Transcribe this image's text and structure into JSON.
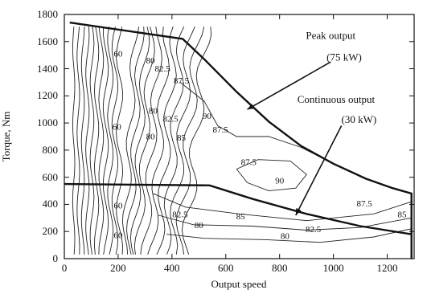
{
  "chart_data": {
    "type": "contour",
    "xlabel": "Output speed",
    "ylabel": "Torque, Nm",
    "xlim": [
      0,
      1300
    ],
    "ylim": [
      0,
      1800
    ],
    "x_ticks": [
      "0",
      "200",
      "400",
      "600",
      "800",
      "1000",
      "1200"
    ],
    "y_ticks": [
      "0",
      "200",
      "400",
      "600",
      "800",
      "1000",
      "1200",
      "1400",
      "1600",
      "1800"
    ],
    "grid": false,
    "peak_curve": {
      "points": [
        [
          20,
          1740
        ],
        [
          440,
          1620
        ],
        [
          520,
          1470
        ],
        [
          640,
          1230
        ],
        [
          760,
          1010
        ],
        [
          880,
          830
        ],
        [
          1000,
          700
        ],
        [
          1120,
          590
        ],
        [
          1220,
          520
        ],
        [
          1290,
          480
        ],
        [
          1290,
          0
        ]
      ]
    },
    "continuous_curve": {
      "points": [
        [
          0,
          550
        ],
        [
          540,
          540
        ],
        [
          700,
          440
        ],
        [
          900,
          330
        ],
        [
          1100,
          240
        ],
        [
          1290,
          180
        ]
      ]
    },
    "contour_labels": [
      {
        "text": "60",
        "x": 200,
        "y": 1490
      },
      {
        "text": "80",
        "x": 320,
        "y": 1440
      },
      {
        "text": "82.5",
        "x": 365,
        "y": 1380
      },
      {
        "text": "87.5",
        "x": 435,
        "y": 1290
      },
      {
        "text": "90",
        "x": 530,
        "y": 1030
      },
      {
        "text": "87.5",
        "x": 580,
        "y": 930
      },
      {
        "text": "80",
        "x": 330,
        "y": 1070
      },
      {
        "text": "82.5",
        "x": 395,
        "y": 1010
      },
      {
        "text": "60",
        "x": 195,
        "y": 950
      },
      {
        "text": "80",
        "x": 320,
        "y": 880
      },
      {
        "text": "85",
        "x": 435,
        "y": 870
      },
      {
        "text": "87.5",
        "x": 685,
        "y": 690
      },
      {
        "text": "90",
        "x": 800,
        "y": 555
      },
      {
        "text": "82.5",
        "x": 430,
        "y": 305
      },
      {
        "text": "85",
        "x": 655,
        "y": 290
      },
      {
        "text": "80",
        "x": 500,
        "y": 225
      },
      {
        "text": "80",
        "x": 820,
        "y": 145
      },
      {
        "text": "82.5",
        "x": 925,
        "y": 195
      },
      {
        "text": "87.5",
        "x": 1115,
        "y": 385
      },
      {
        "text": "85",
        "x": 1255,
        "y": 305
      },
      {
        "text": "60",
        "x": 200,
        "y": 370
      },
      {
        "text": "60",
        "x": 200,
        "y": 150
      }
    ],
    "annotations": [
      {
        "text": "Peak output",
        "x": 990,
        "y": 1620
      },
      {
        "text": "(75 kW)",
        "x": 1040,
        "y": 1460
      },
      {
        "text": "Continuous output",
        "x": 1010,
        "y": 1150
      },
      {
        "text": "(30 kW)",
        "x": 1095,
        "y": 1000
      }
    ],
    "arrows": [
      {
        "from": [
          990,
          1450
        ],
        "to": [
          680,
          1100
        ]
      },
      {
        "from": [
          1030,
          980
        ],
        "to": [
          860,
          320
        ]
      }
    ]
  }
}
